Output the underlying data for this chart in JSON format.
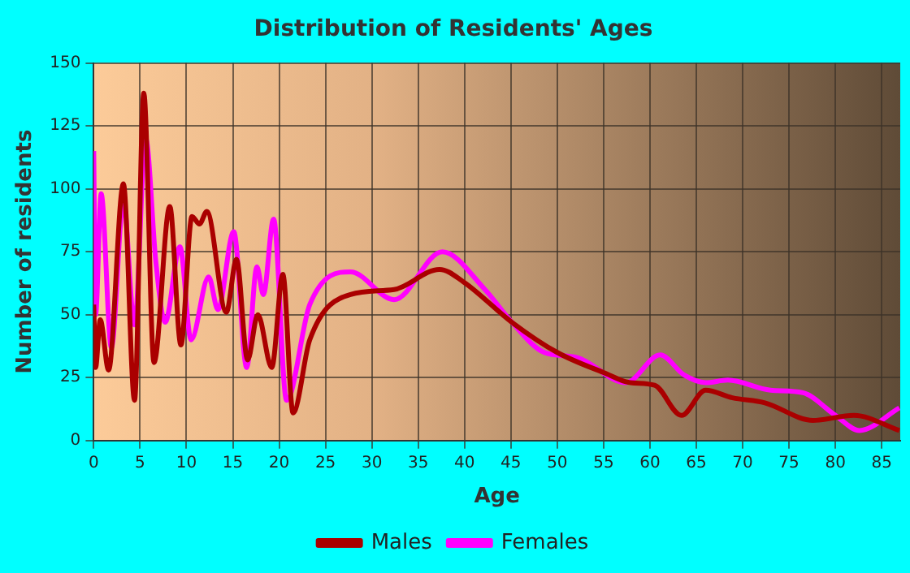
{
  "chart_data": {
    "type": "line",
    "title": "Distribution of Residents' Ages",
    "xlabel": "Age",
    "ylabel": "Number of residents",
    "xlim": [
      0,
      87
    ],
    "xticks": [
      0,
      5,
      10,
      15,
      20,
      25,
      30,
      35,
      40,
      45,
      50,
      55,
      60,
      65,
      70,
      75,
      80,
      85
    ],
    "ylim": [
      0,
      150
    ],
    "yticks": [
      0,
      25,
      50,
      75,
      100,
      125,
      150
    ],
    "grid": true,
    "legend": "bottom",
    "marker": "none",
    "line_style": "solid",
    "series": [
      {
        "name": "Males",
        "color": "#aa0000",
        "x": [
          0,
          0.2,
          0.7,
          1.6,
          3.2,
          4.4,
          5.4,
          6.5,
          8.2,
          9.4,
          10.6,
          11.4,
          12.2,
          14.3,
          15.4,
          16.6,
          17.7,
          19.2,
          20.4,
          21.5,
          23.3,
          27.7,
          32.4,
          37.3,
          39.9,
          45.1,
          50,
          55,
          57.9,
          60.5,
          63.4,
          66,
          68.9,
          72.4,
          77.6,
          82,
          86.9
        ],
        "values": [
          54,
          29,
          48,
          28,
          102,
          16,
          138,
          31,
          93,
          38,
          89,
          86,
          91,
          51,
          72,
          32,
          50,
          29,
          66,
          11,
          40,
          58,
          60,
          68,
          63,
          47,
          35,
          27,
          23,
          22,
          10,
          20,
          17,
          15,
          8,
          10,
          4
        ]
      },
      {
        "name": "Females",
        "color": "#ff00ff",
        "x": [
          0,
          0.2,
          0.8,
          1.9,
          3.2,
          4.4,
          5.6,
          6.7,
          7.7,
          9.3,
          10.5,
          12.4,
          13.4,
          15.1,
          16.5,
          17.6,
          18.3,
          19.4,
          20.8,
          23.3,
          27.7,
          32.4,
          37.6,
          42.2,
          45.1,
          48.6,
          52.1,
          57.4,
          61.1,
          63.7,
          66,
          68.4,
          73,
          76.5,
          80,
          82.6,
          86.9
        ],
        "values": [
          115,
          50,
          98,
          37,
          95,
          46,
          120,
          71,
          47,
          77,
          40,
          65,
          52,
          83,
          29,
          69,
          58,
          88,
          16,
          54,
          67,
          56,
          75,
          60,
          47,
          35,
          33,
          23,
          34,
          26,
          23,
          24,
          20,
          19,
          10,
          4,
          13
        ]
      }
    ]
  }
}
